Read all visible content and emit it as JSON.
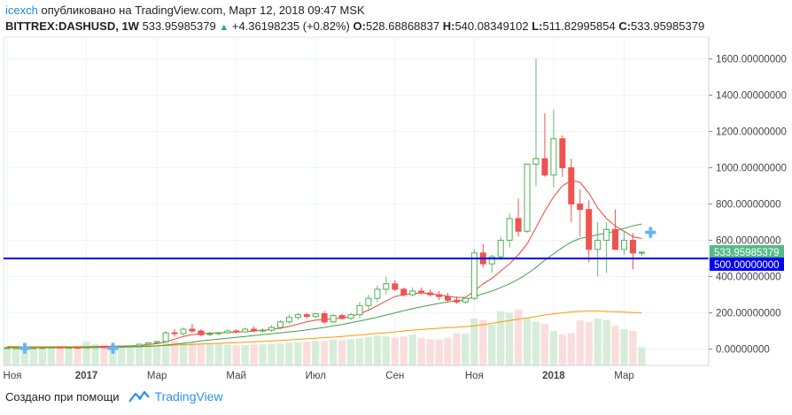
{
  "header": {
    "user": "icexch",
    "published": "опубликовано на TradingView.com, Март 12, 2018 09:47 MSK",
    "symbol": "BITTREX:DASHUSD, 1W",
    "last": "533.95985379",
    "change": "+4.36198235 (+0.82%)",
    "o_label": "O:",
    "o_value": "528.68868837",
    "h_label": "H:",
    "h_value": "540.08349102",
    "l_label": "L:",
    "l_value": "511.82995854",
    "c_label": "C:",
    "c_value": "533.95985379"
  },
  "footer": {
    "text": "Создано при помощи",
    "brand": "TradingView"
  },
  "colors": {
    "up": "#26a69a",
    "down": "#ef5350",
    "line": "#0000ee",
    "ma_fast": "#f44336",
    "ma_slow": "#43a047",
    "ma_long": "#ff9800"
  },
  "chart_data": {
    "type": "candlestick",
    "y_axis_labels": [
      "1600.00000000",
      "1400.00000000",
      "1200.00000000",
      "1000.00000000",
      "800.00000000",
      "600.00000000",
      "400.00000000",
      "200.00000000",
      "0.00000000"
    ],
    "y_ticks": [
      1600,
      1400,
      1200,
      1000,
      800,
      600,
      400,
      200,
      0
    ],
    "ylim": [
      -90,
      1720
    ],
    "x_labels": [
      "Ноя",
      "2017",
      "Мар",
      "Май",
      "Июл",
      "Сен",
      "Ноя",
      "2018",
      "Мар"
    ],
    "x_label_bold": [
      false,
      true,
      false,
      false,
      false,
      false,
      false,
      true,
      false
    ],
    "x_label_index": [
      0,
      9,
      17,
      26,
      35,
      44,
      53,
      62,
      70
    ],
    "horizontal_line": {
      "value": 500,
      "label": "500.00000000"
    },
    "last_price": {
      "value": 533.96,
      "label": "533.95985379"
    },
    "candles": [
      [
        8,
        9,
        7,
        8
      ],
      [
        8,
        9,
        7,
        8
      ],
      [
        8,
        9,
        7,
        8
      ],
      [
        8,
        9,
        7,
        8
      ],
      [
        8,
        9,
        7,
        8.5
      ],
      [
        8.5,
        11,
        8,
        11
      ],
      [
        11,
        12,
        9,
        10
      ],
      [
        10,
        11,
        9,
        10
      ],
      [
        10,
        11,
        9,
        9.5
      ],
      [
        9.5,
        11,
        9,
        11
      ],
      [
        11,
        14,
        10,
        13
      ],
      [
        13,
        14,
        11,
        12
      ],
      [
        12,
        14,
        11,
        13
      ],
      [
        13,
        16,
        12,
        15
      ],
      [
        15,
        20,
        14,
        18
      ],
      [
        18,
        30,
        17,
        27
      ],
      [
        27,
        40,
        25,
        35
      ],
      [
        35,
        47,
        32,
        42
      ],
      [
        42,
        100,
        40,
        90
      ],
      [
        90,
        110,
        70,
        85
      ],
      [
        85,
        120,
        75,
        110
      ],
      [
        110,
        140,
        90,
        100
      ],
      [
        100,
        110,
        70,
        80
      ],
      [
        80,
        95,
        70,
        85
      ],
      [
        85,
        95,
        75,
        90
      ],
      [
        90,
        110,
        85,
        100
      ],
      [
        100,
        110,
        85,
        95
      ],
      [
        95,
        120,
        90,
        110
      ],
      [
        110,
        125,
        95,
        100
      ],
      [
        100,
        115,
        90,
        105
      ],
      [
        105,
        130,
        95,
        120
      ],
      [
        120,
        160,
        110,
        150
      ],
      [
        150,
        190,
        140,
        175
      ],
      [
        175,
        200,
        160,
        190
      ],
      [
        190,
        200,
        170,
        180
      ],
      [
        180,
        200,
        170,
        195
      ],
      [
        195,
        210,
        140,
        150
      ],
      [
        150,
        195,
        145,
        185
      ],
      [
        185,
        195,
        160,
        170
      ],
      [
        170,
        200,
        160,
        190
      ],
      [
        190,
        260,
        170,
        240
      ],
      [
        240,
        300,
        220,
        280
      ],
      [
        280,
        350,
        260,
        330
      ],
      [
        330,
        400,
        300,
        360
      ],
      [
        360,
        380,
        320,
        330
      ],
      [
        330,
        340,
        290,
        300
      ],
      [
        300,
        340,
        290,
        320
      ],
      [
        320,
        340,
        300,
        310
      ],
      [
        310,
        330,
        290,
        300
      ],
      [
        300,
        320,
        270,
        290
      ],
      [
        290,
        310,
        260,
        270
      ],
      [
        270,
        290,
        250,
        260
      ],
      [
        260,
        290,
        250,
        280
      ],
      [
        280,
        550,
        270,
        530
      ],
      [
        530,
        580,
        450,
        470
      ],
      [
        470,
        520,
        420,
        510
      ],
      [
        510,
        620,
        490,
        600
      ],
      [
        600,
        750,
        560,
        720
      ],
      [
        720,
        830,
        620,
        650
      ],
      [
        650,
        1020,
        640,
        1020
      ],
      [
        1020,
        1600,
        900,
        1050
      ],
      [
        1050,
        1300,
        950,
        960
      ],
      [
        960,
        1320,
        890,
        1160
      ],
      [
        1160,
        1180,
        950,
        1000
      ],
      [
        1000,
        1050,
        700,
        800
      ],
      [
        800,
        880,
        620,
        770
      ],
      [
        770,
        820,
        480,
        550
      ],
      [
        550,
        700,
        400,
        600
      ],
      [
        600,
        700,
        420,
        660
      ],
      [
        660,
        770,
        560,
        550
      ],
      [
        550,
        650,
        520,
        600
      ],
      [
        600,
        640,
        440,
        530
      ],
      [
        529,
        540,
        512,
        534
      ]
    ],
    "volume": [
      12,
      10,
      9,
      8,
      8,
      9,
      14,
      16,
      18,
      42,
      30,
      25,
      18,
      15,
      12,
      20,
      22,
      18,
      40,
      46,
      38,
      35,
      32,
      28,
      30,
      25,
      20,
      22,
      25,
      28,
      30,
      32,
      36,
      40,
      42,
      46,
      45,
      52,
      50,
      55,
      60,
      68,
      75,
      70,
      62,
      70,
      80,
      60,
      55,
      52,
      62,
      88,
      86,
      170,
      160,
      135,
      210,
      200,
      218,
      170,
      150,
      140,
      100,
      80,
      88,
      160,
      150,
      170,
      160,
      130,
      110,
      100,
      10
    ],
    "ma_fast": [
      10,
      9,
      9,
      9,
      9,
      10,
      10,
      10,
      10,
      12,
      14,
      15,
      16,
      17,
      18,
      20,
      25,
      30,
      40,
      55,
      70,
      80,
      85,
      88,
      90,
      92,
      94,
      96,
      100,
      103,
      108,
      115,
      125,
      138,
      150,
      160,
      163,
      168,
      172,
      180,
      195,
      215,
      240,
      265,
      290,
      300,
      305,
      310,
      305,
      300,
      292,
      285,
      285,
      320,
      360,
      390,
      430,
      470,
      520,
      580,
      670,
      760,
      840,
      900,
      930,
      920,
      860,
      780,
      720,
      680,
      650,
      620,
      610
    ],
    "ma_slow": [
      8,
      8,
      8,
      8,
      8,
      8,
      8,
      8,
      8,
      9,
      9,
      10,
      10,
      11,
      12,
      13,
      15,
      18,
      22,
      27,
      32,
      38,
      45,
      50,
      55,
      60,
      65,
      70,
      75,
      80,
      85,
      90,
      95,
      100,
      106,
      113,
      120,
      128,
      136,
      145,
      155,
      165,
      176,
      188,
      200,
      212,
      223,
      233,
      243,
      252,
      260,
      266,
      272,
      290,
      305,
      320,
      340,
      360,
      385,
      415,
      450,
      490,
      525,
      560,
      590,
      610,
      620,
      630,
      640,
      650,
      665,
      680,
      690
    ],
    "ma_long": [
      15,
      15,
      14,
      14,
      14,
      14,
      14,
      14,
      14,
      14,
      15,
      15,
      15,
      16,
      16,
      17,
      18,
      19,
      20,
      22,
      24,
      26,
      28,
      30,
      32,
      34,
      36,
      38,
      40,
      42,
      45,
      48,
      51,
      54,
      57,
      60,
      63,
      66,
      70,
      74,
      78,
      82,
      86,
      90,
      95,
      100,
      105,
      108,
      112,
      115,
      118,
      121,
      124,
      128,
      135,
      142,
      150,
      158,
      165,
      172,
      180,
      188,
      195,
      200,
      205,
      208,
      210,
      210,
      208,
      206,
      204,
      202,
      200
    ]
  }
}
